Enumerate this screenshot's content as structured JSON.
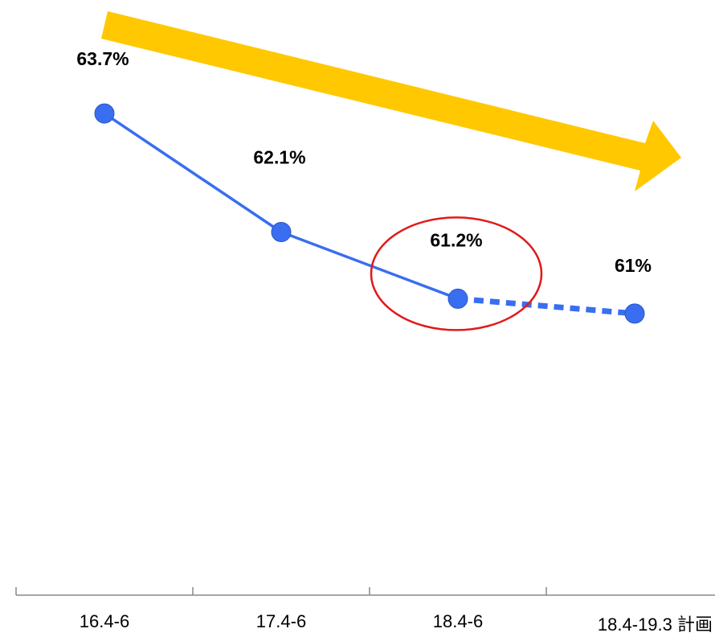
{
  "chart_data": {
    "type": "line",
    "categories": [
      "16.4-6",
      "17.4-6",
      "18.4-6",
      "18.4-19.3 計画"
    ],
    "series": [
      {
        "values": [
          63.7,
          62.1,
          61.2,
          61.0
        ],
        "labels": [
          "63.7%",
          "62.1%",
          "61.2%",
          "61%"
        ]
      }
    ],
    "projected_from_index": 2,
    "highlighted_index": 2,
    "ylim": [
      57.2,
      64.2
    ],
    "grid": false,
    "legend": "none",
    "colors": {
      "line": "#3a6ef0",
      "point": "#3a6ef0",
      "point_edge": "#2a55c8",
      "trend_arrow": "#ffc800",
      "highlight_circle": "#e01b1b",
      "axis": "#888888"
    },
    "annotations": [
      {
        "type": "arrow",
        "meaning": "downward-trend",
        "color": "#ffc800"
      },
      {
        "type": "ellipse",
        "meaning": "highlight",
        "target_index": 2,
        "color": "#e01b1b"
      }
    ]
  }
}
